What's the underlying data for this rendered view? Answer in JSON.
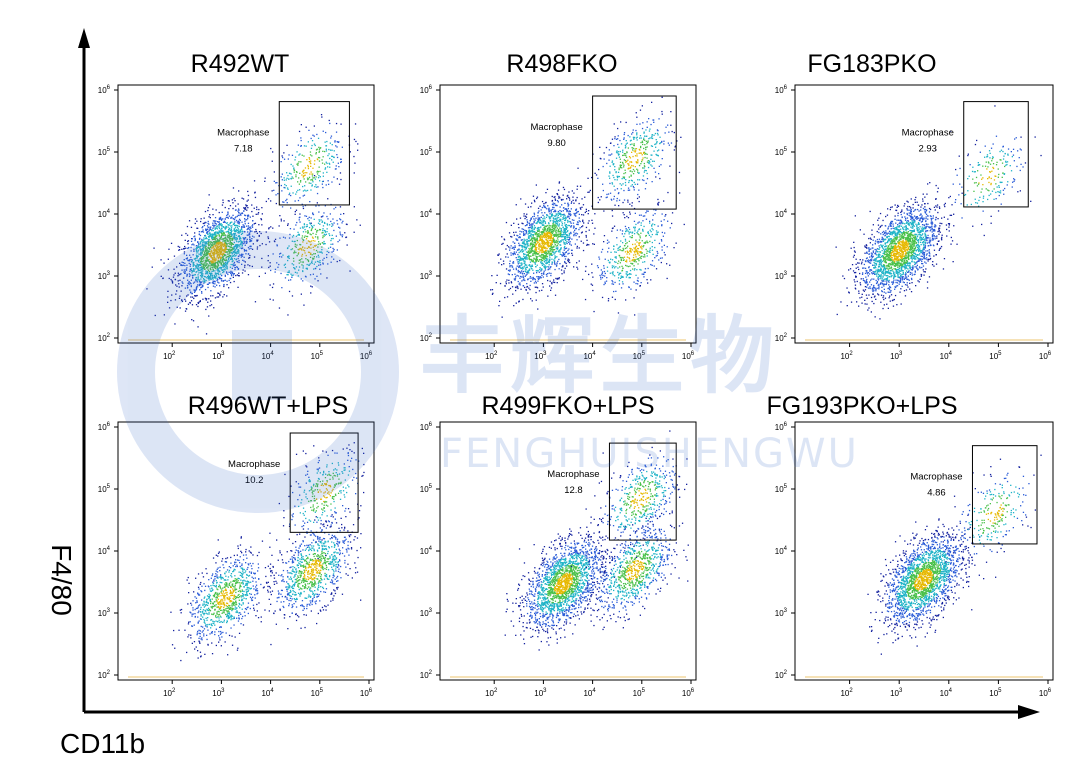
{
  "figure": {
    "y_axis_label": "F4/80",
    "x_axis_label": "CD11b",
    "watermark": {
      "cn": "丰辉生物",
      "en": "FENGHUISHENGWU"
    }
  },
  "chart_data": [
    {
      "type": "scatter",
      "title": "R492WT",
      "xlabel": "CD11b",
      "ylabel": "F4/80",
      "xscale": "log",
      "yscale": "log",
      "xlim": [
        10,
        1000000
      ],
      "ylim": [
        100,
        1000000
      ],
      "xticks": [
        "10^2",
        "10^3",
        "10^4",
        "10^5",
        "10^6"
      ],
      "yticks": [
        "10^2",
        "10^3",
        "10^4",
        "10^5",
        "10^6"
      ],
      "gate": {
        "name": "Macrophase",
        "percent": "7.18",
        "x_range": [
          15000,
          400000
        ],
        "y_range": [
          14000,
          650000
        ]
      },
      "populations": [
        {
          "cx": 800,
          "cy": 2500,
          "n": 1900
        },
        {
          "cx": 55000,
          "cy": 3000,
          "n": 420
        },
        {
          "cx": 60000,
          "cy": 60000,
          "n": 320
        }
      ]
    },
    {
      "type": "scatter",
      "title": "R498FKO",
      "xlabel": "CD11b",
      "ylabel": "F4/80",
      "xscale": "log",
      "yscale": "log",
      "xlim": [
        10,
        1000000
      ],
      "ylim": [
        100,
        1000000
      ],
      "xticks": [
        "10^2",
        "10^3",
        "10^4",
        "10^5",
        "10^6"
      ],
      "yticks": [
        "10^2",
        "10^3",
        "10^4",
        "10^5",
        "10^6"
      ],
      "gate": {
        "name": "Macrophase",
        "percent": "9.80",
        "x_range": [
          10000,
          500000
        ],
        "y_range": [
          12000,
          800000
        ]
      },
      "populations": [
        {
          "cx": 1000,
          "cy": 3500,
          "n": 1700
        },
        {
          "cx": 65000,
          "cy": 2500,
          "n": 480
        },
        {
          "cx": 70000,
          "cy": 80000,
          "n": 420
        }
      ]
    },
    {
      "type": "scatter",
      "title": "FG183PKO",
      "xlabel": "CD11b",
      "ylabel": "F4/80",
      "xscale": "log",
      "yscale": "log",
      "xlim": [
        10,
        1000000
      ],
      "ylim": [
        100,
        1000000
      ],
      "xticks": [
        "10^2",
        "10^3",
        "10^4",
        "10^5",
        "10^6"
      ],
      "yticks": [
        "10^2",
        "10^3",
        "10^4",
        "10^5",
        "10^6"
      ],
      "gate": {
        "name": "Macrophase",
        "percent": "2.93",
        "x_range": [
          20000,
          400000
        ],
        "y_range": [
          13000,
          650000
        ]
      },
      "populations": [
        {
          "cx": 1000,
          "cy": 2600,
          "n": 2100
        },
        {
          "cx": 60000,
          "cy": 40000,
          "n": 200
        }
      ]
    },
    {
      "type": "scatter",
      "title": "R496WT+LPS",
      "xlabel": "CD11b",
      "ylabel": "F4/80",
      "xscale": "log",
      "yscale": "log",
      "xlim": [
        10,
        1000000
      ],
      "ylim": [
        100,
        1000000
      ],
      "xticks": [
        "10^2",
        "10^3",
        "10^4",
        "10^5",
        "10^6"
      ],
      "yticks": [
        "10^2",
        "10^3",
        "10^4",
        "10^5",
        "10^6"
      ],
      "gate": {
        "name": "Macrophase",
        "percent": "10.2",
        "x_range": [
          25000,
          600000
        ],
        "y_range": [
          20000,
          800000
        ]
      },
      "populations": [
        {
          "cx": 1200,
          "cy": 1800,
          "n": 900
        },
        {
          "cx": 70000,
          "cy": 5000,
          "n": 900
        },
        {
          "cx": 120000,
          "cy": 90000,
          "n": 320
        }
      ]
    },
    {
      "type": "scatter",
      "title": "R499FKO+LPS",
      "xlabel": "CD11b",
      "ylabel": "F4/80",
      "xscale": "log",
      "yscale": "log",
      "xlim": [
        10,
        1000000
      ],
      "ylim": [
        100,
        1000000
      ],
      "xticks": [
        "10^2",
        "10^3",
        "10^4",
        "10^5",
        "10^6"
      ],
      "yticks": [
        "10^2",
        "10^3",
        "10^4",
        "10^5",
        "10^6"
      ],
      "gate": {
        "name": "Macrophase",
        "percent": "12.8",
        "x_range": [
          22000,
          500000
        ],
        "y_range": [
          15000,
          550000
        ]
      },
      "populations": [
        {
          "cx": 2500,
          "cy": 3000,
          "n": 1900
        },
        {
          "cx": 70000,
          "cy": 5000,
          "n": 800
        },
        {
          "cx": 90000,
          "cy": 70000,
          "n": 450
        }
      ]
    },
    {
      "type": "scatter",
      "title": "FG193PKO+LPS",
      "xlabel": "CD11b",
      "ylabel": "F4/80",
      "xscale": "log",
      "yscale": "log",
      "xlim": [
        10,
        1000000
      ],
      "ylim": [
        100,
        1000000
      ],
      "xticks": [
        "10^2",
        "10^3",
        "10^4",
        "10^5",
        "10^6"
      ],
      "yticks": [
        "10^2",
        "10^3",
        "10^4",
        "10^5",
        "10^6"
      ],
      "gate": {
        "name": "Macrophase",
        "percent": "4.86",
        "x_range": [
          30000,
          600000
        ],
        "y_range": [
          13000,
          500000
        ]
      },
      "populations": [
        {
          "cx": 3000,
          "cy": 3500,
          "n": 2000
        },
        {
          "cx": 80000,
          "cy": 40000,
          "n": 250
        }
      ]
    }
  ]
}
